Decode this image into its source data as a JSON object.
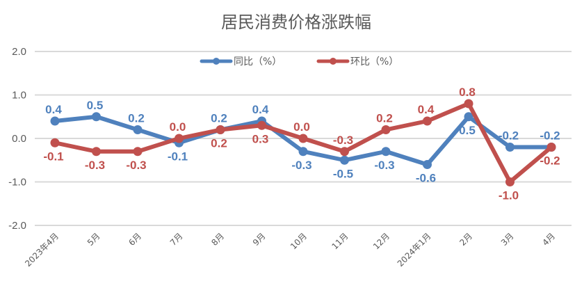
{
  "chart_data": {
    "type": "line",
    "title": "居民消费价格涨跌幅",
    "xlabel": "",
    "ylabel": "",
    "categories": [
      "2023年4月",
      "5月",
      "6月",
      "7月",
      "8月",
      "9月",
      "10月",
      "11月",
      "12月",
      "2024年1月",
      "2月",
      "3月",
      "4月"
    ],
    "ylim": [
      -2.0,
      2.0
    ],
    "yticks": [
      "2.0",
      "1.0",
      "0.0",
      "-1.0",
      "-2.0"
    ],
    "grid": true,
    "legend_position": "top-center",
    "series": [
      {
        "name": "同比（%）",
        "color": "#4f81bd",
        "values": [
          0.4,
          0.5,
          0.2,
          -0.1,
          0.2,
          0.4,
          -0.3,
          -0.5,
          -0.3,
          -0.6,
          0.5,
          -0.2,
          -0.2
        ],
        "labels": [
          "0.4",
          "0.5",
          "0.2",
          "-0.1",
          "0.2",
          "0.4",
          "-0.3",
          "-0.5",
          "-0.3",
          "-0.6",
          "0.5",
          "-0.2",
          "-0.2"
        ],
        "label_side": [
          "above",
          "above",
          "above",
          "below",
          "above",
          "above",
          "below",
          "below",
          "below",
          "below",
          "below",
          "above",
          "above"
        ]
      },
      {
        "name": "环比（%）",
        "color": "#c0504d",
        "values": [
          -0.1,
          -0.3,
          -0.3,
          0.0,
          0.2,
          0.3,
          0.0,
          -0.3,
          0.2,
          0.4,
          0.8,
          -1.0,
          -0.2
        ],
        "labels": [
          "-0.1",
          "-0.3",
          "-0.3",
          "0.0",
          "0.2",
          "0.3",
          "0.0",
          "-0.3",
          "0.2",
          "0.4",
          "0.8",
          "-1.0",
          "-0.2"
        ],
        "label_side": [
          "below",
          "below",
          "below",
          "above",
          "below",
          "below",
          "above",
          "above",
          "above",
          "above",
          "above",
          "below",
          "below"
        ]
      }
    ]
  }
}
